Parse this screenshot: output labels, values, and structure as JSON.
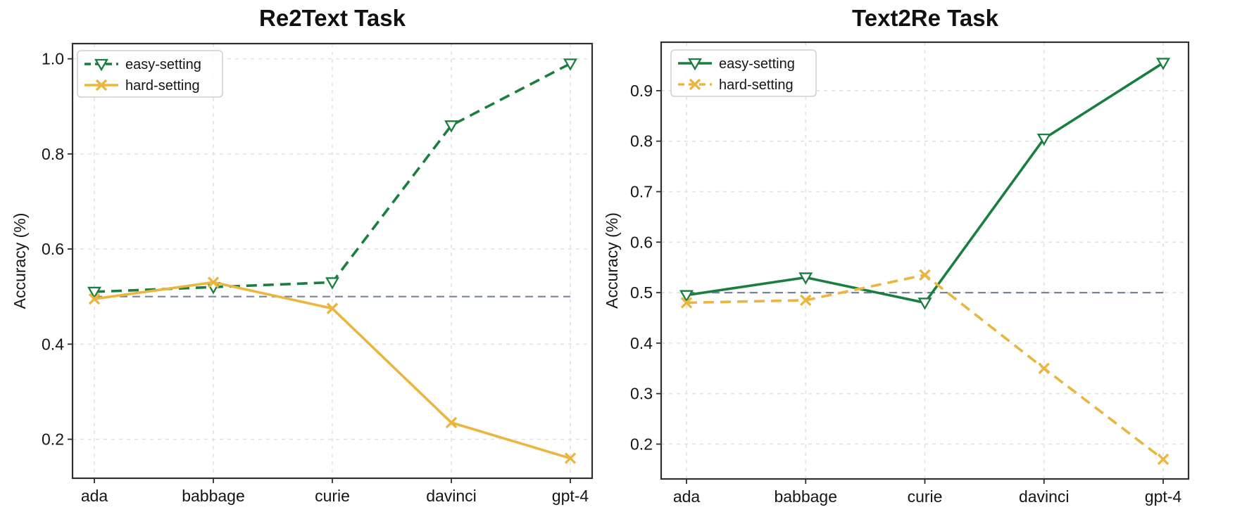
{
  "figure": {
    "background": "#ffffff"
  },
  "chart_data": [
    {
      "type": "line",
      "title": "Re2Text Task",
      "ylabel": "Accuracy (%)",
      "categories": [
        "ada",
        "babbage",
        "curie",
        "davinci",
        "gpt-4"
      ],
      "ylim": [
        0.118,
        1.032
      ],
      "yticks": [
        0.2,
        0.4,
        0.6,
        0.8,
        1.0
      ],
      "ytick_labels": [
        "0.2",
        "0.4",
        "0.6",
        "0.8",
        "1.0"
      ],
      "grid": true,
      "legend_position": "upper-left",
      "baseline": {
        "value": 0.5,
        "style": "dashed",
        "color": "#76859a"
      },
      "series": [
        {
          "name": "easy-setting",
          "color": "#1a7e3e",
          "line_style": "dashed",
          "marker": "triangle-down",
          "values": [
            0.51,
            0.52,
            0.53,
            0.86,
            0.99
          ]
        },
        {
          "name": "hard-setting",
          "color": "#ecb53f",
          "line_style": "solid",
          "marker": "x",
          "values": [
            0.495,
            0.53,
            0.475,
            0.235,
            0.16
          ]
        }
      ]
    },
    {
      "type": "line",
      "title": "Text2Re Task",
      "ylabel": "Accuracy (%)",
      "categories": [
        "ada",
        "babbage",
        "curie",
        "davinci",
        "gpt-4"
      ],
      "ylim": [
        0.131,
        0.996
      ],
      "yticks": [
        0.2,
        0.3,
        0.4,
        0.5,
        0.6,
        0.7,
        0.8,
        0.9
      ],
      "ytick_labels": [
        "0.2",
        "0.3",
        "0.4",
        "0.5",
        "0.6",
        "0.7",
        "0.8",
        "0.9"
      ],
      "grid": true,
      "legend_position": "upper-left",
      "baseline": {
        "value": 0.5,
        "style": "dashed",
        "color": "#76859a"
      },
      "series": [
        {
          "name": "easy-setting",
          "color": "#1a7e3e",
          "line_style": "solid",
          "marker": "triangle-down",
          "values": [
            0.495,
            0.53,
            0.48,
            0.805,
            0.955
          ]
        },
        {
          "name": "hard-setting",
          "color": "#ecb53f",
          "line_style": "dashed",
          "marker": "x",
          "values": [
            0.48,
            0.485,
            0.535,
            0.35,
            0.17
          ]
        }
      ]
    }
  ]
}
